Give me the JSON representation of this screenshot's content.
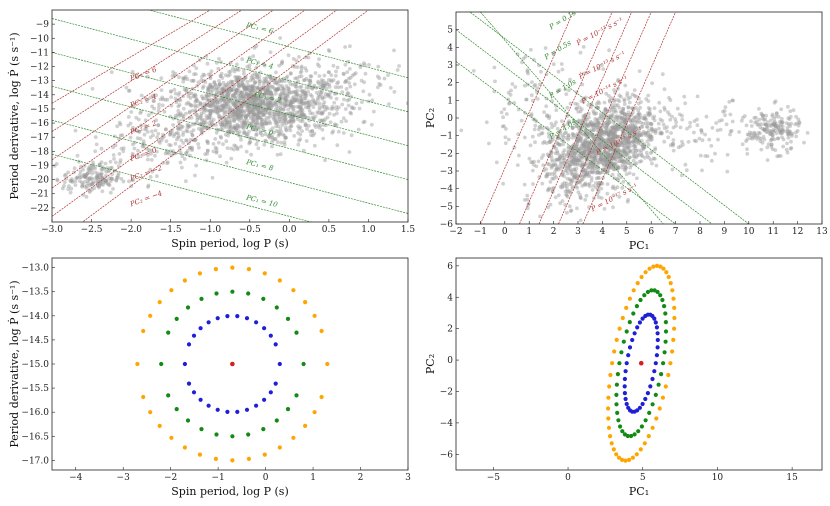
{
  "colors": {
    "grey_pts": "#9a9a9a",
    "green_line": "#2e8b2e",
    "red_line": "#b03030",
    "orange": "#ffa500",
    "green": "#138a13",
    "blue": "#1f1fd6",
    "center": "#d62020"
  },
  "chart_data": [
    {
      "id": "tl",
      "type": "scatter",
      "xlabel": "Spin period, log P (s)",
      "ylabel": "Period derivative, log Ṗ (s s⁻¹)",
      "xlim": [
        -3.0,
        1.5
      ],
      "ylim": [
        -23,
        -8
      ],
      "xticks": [
        -3.0,
        -2.5,
        -2.0,
        -1.5,
        -1.0,
        -0.5,
        0.0,
        0.5,
        1.0,
        1.5
      ],
      "xtick_labels": [
        "−3.0",
        "−2.5",
        "−2.0",
        "−1.5",
        "−1.0",
        "−0.5",
        "0.0",
        "0.5",
        "1.0",
        "1.5"
      ],
      "yticks": [
        -22,
        -21,
        -20,
        -19,
        -18,
        -17,
        -16,
        -15,
        -14,
        -13,
        -12,
        -11,
        -10,
        -9
      ],
      "ytick_labels": [
        "−22",
        "−21",
        "−20",
        "−19",
        "−18",
        "−17",
        "−16",
        "−15",
        "−14",
        "−13",
        "−12",
        "−11",
        "−10",
        "−9"
      ],
      "green_lines": [
        {
          "label": "PC₁ = 0",
          "p1": [
            -3.0,
            -13.4
          ],
          "p2": [
            1.5,
            -20.0
          ],
          "lx": -0.62
        },
        {
          "label": "PC₁ = 2",
          "p1": [
            -3.0,
            -11.0
          ],
          "p2": [
            1.5,
            -17.6
          ],
          "lx": -0.62
        },
        {
          "label": "PC₁ = 4",
          "p1": [
            -3.0,
            -8.6
          ],
          "p2": [
            1.5,
            -15.2
          ],
          "lx": -0.62
        },
        {
          "label": "PC₁ = 6",
          "p1": [
            -3.0,
            -6.2
          ],
          "p2": [
            1.5,
            -12.8
          ],
          "lx": -0.62
        },
        {
          "label": "PC₁ = 8",
          "p1": [
            -3.0,
            -15.8
          ],
          "p2": [
            1.5,
            -22.4
          ],
          "lx": -0.62
        },
        {
          "label": "PC₁ = 10",
          "p1": [
            -3.0,
            -18.2
          ],
          "p2": [
            1.5,
            -24.8
          ],
          "lx": -0.62
        }
      ],
      "green_labels": [
        {
          "text": "PC₁ = 6",
          "x": -0.55,
          "y": -9.2
        },
        {
          "text": "PC₁ = 4",
          "x": -0.55,
          "y": -11.7
        },
        {
          "text": "PC₁ = 2",
          "x": -0.45,
          "y": -14.1
        },
        {
          "text": "PC₁ = 0",
          "x": -0.55,
          "y": -16.4
        },
        {
          "text": "PC₁ = 8",
          "x": -0.55,
          "y": -18.9
        },
        {
          "text": "PC₁ = 10",
          "x": -0.55,
          "y": -21.4
        }
      ],
      "red_lines": [
        {
          "label": "PC₂ = 6",
          "p1": [
            -3.0,
            -24.6
          ],
          "p2": [
            1.0,
            -8.0
          ]
        },
        {
          "label": "PC₂ = 4",
          "p1": [
            -3.0,
            -22.6
          ],
          "p2": [
            0.6,
            -8.0
          ]
        },
        {
          "label": "PC₂ = 2",
          "p1": [
            -3.0,
            -20.6
          ],
          "p2": [
            0.2,
            -8.0
          ]
        },
        {
          "label": "PC₂ = 0",
          "p1": [
            -3.0,
            -18.6
          ],
          "p2": [
            -0.2,
            -8.0
          ]
        },
        {
          "label": "PC₂ = −2",
          "p1": [
            -3.0,
            -16.6
          ],
          "p2": [
            -0.6,
            -8.0
          ]
        },
        {
          "label": "PC₂ = −4",
          "p1": [
            -3.0,
            -14.6
          ],
          "p2": [
            -1.0,
            -8.0
          ]
        }
      ],
      "red_labels": [
        {
          "text": "PC₂ = 6",
          "x": -2.0,
          "y": -13.0
        },
        {
          "text": "PC₂ = 4",
          "x": -2.0,
          "y": -14.9
        },
        {
          "text": "PC₂ = 2",
          "x": -2.0,
          "y": -16.8
        },
        {
          "text": "PC₂ = 0",
          "x": -2.0,
          "y": -18.7
        },
        {
          "text": "PC₂ = −2",
          "x": -2.0,
          "y": -20.1
        },
        {
          "text": "PC₂ = −4",
          "x": -2.0,
          "y": -21.9
        }
      ],
      "clusters": [
        {
          "cx": -0.5,
          "cy": -14.8,
          "sx": 0.55,
          "sy": 1.3,
          "n": 1500,
          "rot": -0.25
        },
        {
          "cx": -2.5,
          "cy": -19.9,
          "sx": 0.18,
          "sy": 0.55,
          "n": 170,
          "rot": 0.0
        },
        {
          "cx": -1.6,
          "cy": -17.5,
          "sx": 0.45,
          "sy": 1.2,
          "n": 150,
          "rot": 0.6
        },
        {
          "cx": 0.5,
          "cy": -13.0,
          "sx": 0.45,
          "sy": 1.4,
          "n": 140,
          "rot": 0.4
        }
      ]
    },
    {
      "id": "tr",
      "type": "scatter",
      "xlabel": "PC₁",
      "ylabel": "PC₂",
      "xlim": [
        -2,
        13
      ],
      "ylim": [
        -6,
        6
      ],
      "xticks": [
        -2,
        -1,
        0,
        1,
        2,
        3,
        4,
        5,
        6,
        7,
        8,
        9,
        10,
        11,
        12,
        13
      ],
      "xtick_labels": [
        "−2",
        "−1",
        "0",
        "1",
        "2",
        "3",
        "4",
        "5",
        "6",
        "7",
        "8",
        "9",
        "10",
        "11",
        "12",
        "13"
      ],
      "yticks": [
        -6,
        -5,
        -4,
        -3,
        -2,
        -1,
        0,
        1,
        2,
        3,
        4,
        5
      ],
      "ytick_labels": [
        "−6",
        "−5",
        "−4",
        "−3",
        "−2",
        "−1",
        "0",
        "1",
        "2",
        "3",
        "4",
        "5"
      ],
      "green_lines": [
        {
          "p1": [
            -2.0,
            6.6
          ],
          "p2": [
            10.0,
            -6.0
          ]
        },
        {
          "p1": [
            -2.0,
            5.0
          ],
          "p2": [
            8.5,
            -6.0
          ]
        },
        {
          "p1": [
            -2.0,
            3.2
          ],
          "p2": [
            7.0,
            -6.0
          ]
        },
        {
          "p1": [
            -1.0,
            6.0
          ],
          "p2": [
            6.5,
            -6.0
          ]
        }
      ],
      "green_labels": [
        {
          "text": "P = 0.1s",
          "x": 1.9,
          "y": 5.0
        },
        {
          "text": "P = 0.5s",
          "x": 1.7,
          "y": 3.3
        },
        {
          "text": "P = 1.0s",
          "x": 1.9,
          "y": 1.1
        },
        {
          "text": "P = 4.0s",
          "x": 1.9,
          "y": -1.2
        }
      ],
      "red_lines": [
        {
          "p1": [
            -1.0,
            -6.0
          ],
          "p2": [
            2.8,
            6.0
          ]
        },
        {
          "p1": [
            0.6,
            -6.0
          ],
          "p2": [
            4.4,
            6.0
          ]
        },
        {
          "p1": [
            1.4,
            -6.0
          ],
          "p2": [
            5.2,
            6.0
          ]
        },
        {
          "p1": [
            2.2,
            -6.0
          ],
          "p2": [
            6.0,
            6.0
          ]
        },
        {
          "p1": [
            3.2,
            -6.0
          ],
          "p2": [
            7.0,
            6.0
          ]
        }
      ],
      "red_labels": [
        {
          "text": "Ṗ = 10⁻¹² s s⁻¹",
          "x": 3.0,
          "y": 4.1
        },
        {
          "text": "Ṗ = 10⁻¹³ s s⁻¹",
          "x": 3.1,
          "y": 2.2
        },
        {
          "text": "Ṗ = 10⁻¹⁴ s s⁻¹",
          "x": 3.2,
          "y": 0.8
        },
        {
          "text": "Ṗ = 10⁻¹⁵ s s⁻¹",
          "x": 3.8,
          "y": -2.1
        },
        {
          "text": "Ṗ = 10⁻¹⁷ s s⁻¹",
          "x": 3.6,
          "y": -5.3
        }
      ],
      "clusters": [
        {
          "cx": 4.0,
          "cy": -1.6,
          "sx": 1.2,
          "sy": 1.2,
          "n": 1400,
          "rot": 0.3
        },
        {
          "cx": 11.0,
          "cy": -0.7,
          "sx": 0.55,
          "sy": 0.6,
          "n": 170,
          "rot": 0.0
        },
        {
          "cx": 8.5,
          "cy": -1.0,
          "sx": 1.2,
          "sy": 0.9,
          "n": 80,
          "rot": 0.0
        },
        {
          "cx": 1.8,
          "cy": 0.5,
          "sx": 1.4,
          "sy": 1.8,
          "n": 150,
          "rot": 0.0
        }
      ]
    },
    {
      "id": "bl",
      "type": "scatter",
      "xlabel": "Spin period, log P (s)",
      "ylabel": "Period derivative, log Ṗ (s s⁻¹)",
      "xlim": [
        -4.5,
        3.0
      ],
      "ylim": [
        -17.2,
        -12.8
      ],
      "xticks": [
        -4,
        -3,
        -2,
        -1,
        0,
        1,
        2,
        3
      ],
      "xtick_labels": [
        "−4",
        "−3",
        "−2",
        "−1",
        "0",
        "1",
        "2",
        "3"
      ],
      "yticks": [
        -17.0,
        -16.5,
        -16.0,
        -15.5,
        -15.0,
        -14.5,
        -14.0,
        -13.5,
        -13.0
      ],
      "ytick_labels": [
        "−17.0",
        "−16.5",
        "−16.0",
        "−15.5",
        "−15.0",
        "−14.5",
        "−14.0",
        "−13.5",
        "−13.0"
      ],
      "center": [
        -0.7,
        -15.0
      ],
      "rings": [
        {
          "color": "orange",
          "rx": 2.0,
          "ry": 2.0,
          "n": 36
        },
        {
          "color": "green",
          "rx": 1.5,
          "ry": 1.5,
          "n": 28
        },
        {
          "color": "blue",
          "rx": 1.0,
          "ry": 1.0,
          "n": 30
        }
      ]
    },
    {
      "id": "br",
      "type": "scatter",
      "xlabel": "PC₁",
      "ylabel": "PC₂",
      "xlim": [
        -7.5,
        17.0
      ],
      "ylim": [
        -7.0,
        6.5
      ],
      "xticks": [
        -5,
        0,
        5,
        10,
        15
      ],
      "xtick_labels": [
        "−5",
        "0",
        "5",
        "10",
        "15"
      ],
      "yticks": [
        -6,
        -4,
        -2,
        0,
        2,
        4,
        6
      ],
      "ytick_labels": [
        "−6",
        "−4",
        "−2",
        "0",
        "2",
        "4",
        "6"
      ],
      "center": [
        4.9,
        -0.2
      ],
      "rings": [
        {
          "color": "orange",
          "scale": 1.0,
          "n": 52
        },
        {
          "color": "green",
          "scale": 0.75,
          "n": 42
        },
        {
          "color": "blue",
          "scale": 0.5,
          "n": 38
        }
      ]
    }
  ]
}
